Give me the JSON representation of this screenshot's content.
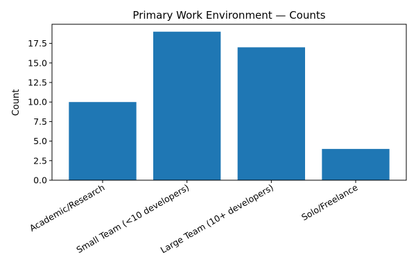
{
  "chart_data": {
    "type": "bar",
    "title": "Primary Work Environment — Counts",
    "xlabel": "",
    "ylabel": "Count",
    "categories": [
      "Academic/Research",
      "Small Team (<10 developers)",
      "Large Team (10+ developers)",
      "Solo/Freelance"
    ],
    "values": [
      10,
      19,
      17,
      4
    ],
    "ylim": [
      0,
      19.95
    ],
    "yticks": [
      "0.0",
      "2.5",
      "5.0",
      "7.5",
      "10.0",
      "12.5",
      "15.0",
      "17.5"
    ],
    "grid": false,
    "legend": "none",
    "bar_color": "#1f77b4",
    "x_tick_rotation_deg": 30
  }
}
